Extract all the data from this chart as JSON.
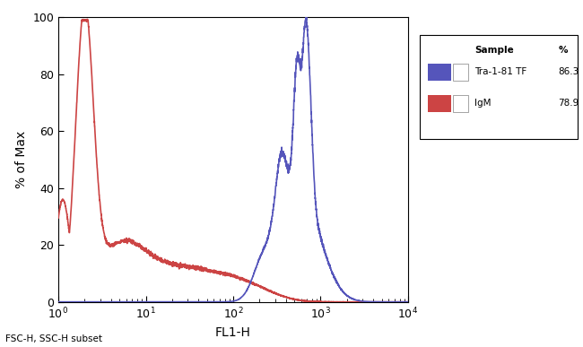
{
  "xlabel": "FL1-H",
  "ylabel": "% of Max",
  "footnote": "FSC-H, SSC-H subset",
  "ylim": [
    0,
    100
  ],
  "yticks": [
    0,
    20,
    40,
    60,
    80,
    100
  ],
  "legend_title": "Sample        %",
  "legend_line1": "Tra-1-81 TF  86.3",
  "legend_line2": "IgM             78.9",
  "blue_color": "#5555bb",
  "red_color": "#cc4444",
  "bg_color": "#ffffff",
  "fig_bg": "#ffffff"
}
